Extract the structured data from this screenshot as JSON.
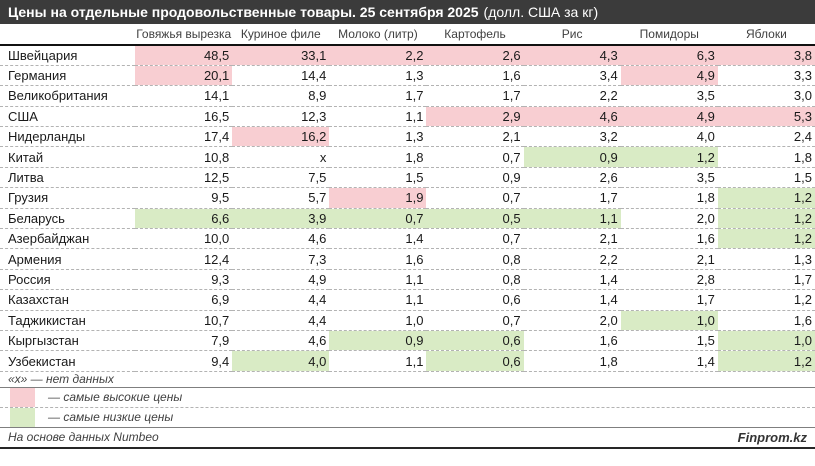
{
  "title": {
    "main": "Цены на отдельные продовольственные товары. 25 сентября 2025",
    "unit": "(долл. США за кг)"
  },
  "chart_data": {
    "type": "table",
    "columns": [
      "Говяжья вырезка",
      "Куриное филе",
      "Молоко (литр)",
      "Картофель",
      "Рис",
      "Помидоры",
      "Яблоки"
    ],
    "rows": [
      {
        "country": "Швейцария",
        "values": [
          "48,5",
          "33,1",
          "2,2",
          "2,6",
          "4,3",
          "6,3",
          "3,8"
        ],
        "marks": [
          "hi",
          "hi",
          "hi",
          "hi",
          "hi",
          "hi",
          "hi"
        ]
      },
      {
        "country": "Германия",
        "values": [
          "20,1",
          "14,4",
          "1,3",
          "1,6",
          "3,4",
          "4,9",
          "3,3"
        ],
        "marks": [
          "hi",
          "",
          "",
          "",
          "",
          "hi",
          ""
        ]
      },
      {
        "country": "Великобритания",
        "values": [
          "14,1",
          "8,9",
          "1,7",
          "1,7",
          "2,2",
          "3,5",
          "3,0"
        ],
        "marks": [
          "",
          "",
          "",
          "",
          "",
          "",
          ""
        ]
      },
      {
        "country": "США",
        "values": [
          "16,5",
          "12,3",
          "1,1",
          "2,9",
          "4,6",
          "4,9",
          "5,3"
        ],
        "marks": [
          "",
          "",
          "",
          "hi",
          "hi",
          "hi",
          "hi"
        ]
      },
      {
        "country": "Нидерланды",
        "values": [
          "17,4",
          "16,2",
          "1,3",
          "2,1",
          "3,2",
          "4,0",
          "2,4"
        ],
        "marks": [
          "",
          "hi",
          "",
          "",
          "",
          "",
          ""
        ]
      },
      {
        "country": "Китай",
        "values": [
          "10,8",
          "х",
          "1,8",
          "0,7",
          "0,9",
          "1,2",
          "1,8"
        ],
        "marks": [
          "",
          "",
          "",
          "",
          "lo",
          "lo",
          ""
        ]
      },
      {
        "country": "Литва",
        "values": [
          "12,5",
          "7,5",
          "1,5",
          "0,9",
          "2,6",
          "3,5",
          "1,5"
        ],
        "marks": [
          "",
          "",
          "",
          "",
          "",
          "",
          ""
        ]
      },
      {
        "country": "Грузия",
        "values": [
          "9,5",
          "5,7",
          "1,9",
          "0,7",
          "1,7",
          "1,8",
          "1,2"
        ],
        "marks": [
          "",
          "",
          "hi",
          "",
          "",
          "",
          "lo"
        ]
      },
      {
        "country": "Беларусь",
        "values": [
          "6,6",
          "3,9",
          "0,7",
          "0,5",
          "1,1",
          "2,0",
          "1,2"
        ],
        "marks": [
          "lo",
          "lo",
          "lo",
          "lo",
          "lo",
          "",
          "lo"
        ]
      },
      {
        "country": "Азербайджан",
        "values": [
          "10,0",
          "4,6",
          "1,4",
          "0,7",
          "2,1",
          "1,6",
          "1,2"
        ],
        "marks": [
          "",
          "",
          "",
          "",
          "",
          "",
          "lo"
        ]
      },
      {
        "country": "Армения",
        "values": [
          "12,4",
          "7,3",
          "1,6",
          "0,8",
          "2,2",
          "2,1",
          "1,3"
        ],
        "marks": [
          "",
          "",
          "",
          "",
          "",
          "",
          ""
        ]
      },
      {
        "country": "Россия",
        "values": [
          "9,3",
          "4,9",
          "1,1",
          "0,8",
          "1,4",
          "2,8",
          "1,7"
        ],
        "marks": [
          "",
          "",
          "",
          "",
          "",
          "",
          ""
        ]
      },
      {
        "country": "Казахстан",
        "values": [
          "6,9",
          "4,4",
          "1,1",
          "0,6",
          "1,4",
          "1,7",
          "1,2"
        ],
        "marks": [
          "",
          "",
          "",
          "",
          "",
          "",
          ""
        ]
      },
      {
        "country": "Таджикистан",
        "values": [
          "10,7",
          "4,4",
          "1,0",
          "0,7",
          "2,0",
          "1,0",
          "1,6"
        ],
        "marks": [
          "",
          "",
          "",
          "",
          "",
          "lo",
          ""
        ]
      },
      {
        "country": "Кыргызстан",
        "values": [
          "7,9",
          "4,6",
          "0,9",
          "0,6",
          "1,6",
          "1,5",
          "1,0"
        ],
        "marks": [
          "",
          "",
          "lo",
          "lo",
          "",
          "",
          "lo"
        ]
      },
      {
        "country": "Узбекистан",
        "values": [
          "9,4",
          "4,0",
          "1,1",
          "0,6",
          "1,8",
          "1,4",
          "1,2"
        ],
        "marks": [
          "",
          "lo",
          "",
          "lo",
          "",
          "",
          "lo"
        ]
      }
    ]
  },
  "notes": {
    "no_data": "«х» — нет данных"
  },
  "legend": [
    {
      "type": "hi",
      "label": "— самые высокие цены"
    },
    {
      "type": "lo",
      "label": "— самые низкие цены"
    }
  ],
  "footer": {
    "source": "На основе данных Numbeo",
    "brand": "Finprom.kz"
  },
  "colors": {
    "high": "#f8ced2",
    "low": "#d9ebc5",
    "titlebar": "#3b3b3b"
  }
}
